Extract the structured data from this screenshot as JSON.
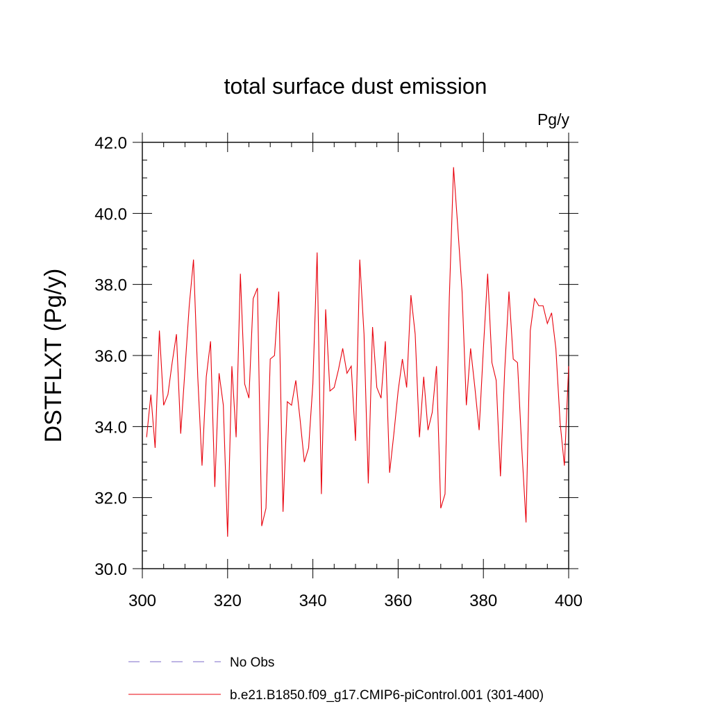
{
  "chart_data": {
    "type": "line",
    "title": "total surface dust emission",
    "units_label": "Pg/y",
    "xlabel": "",
    "ylabel": "DSTFLXT  (Pg/y)",
    "xlim": [
      300,
      400
    ],
    "ylim": [
      30.0,
      42.0
    ],
    "x_ticks": [
      300,
      320,
      340,
      360,
      380,
      400
    ],
    "y_ticks": [
      "30.0",
      "32.0",
      "34.0",
      "36.0",
      "38.0",
      "40.0",
      "42.0"
    ],
    "grid": false,
    "legend": {
      "placement": "bottom",
      "entries": [
        {
          "label": "No Obs",
          "color": "#7b68c8",
          "style": "dashed"
        },
        {
          "label": "b.e21.B1850.f09_g17.CMIP6-piControl.001 (301-400)",
          "color": "#e8000b",
          "style": "solid"
        }
      ]
    },
    "series": [
      {
        "name": "b.e21.B1850.f09_g17.CMIP6-piControl.001 (301-400)",
        "color": "#e8000b",
        "x_start": 301,
        "x_step": 1,
        "values": [
          33.7,
          34.9,
          33.4,
          36.7,
          34.6,
          34.9,
          35.8,
          36.6,
          33.8,
          35.6,
          37.4,
          38.7,
          35.4,
          32.9,
          35.4,
          36.4,
          32.3,
          35.5,
          34.6,
          30.9,
          35.7,
          33.7,
          38.3,
          35.2,
          34.8,
          37.6,
          37.9,
          31.2,
          31.7,
          35.9,
          36.0,
          37.8,
          31.6,
          34.7,
          34.6,
          35.3,
          34.2,
          33.0,
          33.4,
          35.2,
          38.9,
          32.1,
          37.3,
          35.0,
          35.1,
          35.6,
          36.2,
          35.5,
          35.7,
          33.6,
          38.7,
          36.6,
          32.4,
          36.8,
          35.1,
          34.8,
          36.4,
          32.7,
          33.8,
          35.0,
          35.9,
          35.1,
          37.7,
          36.6,
          33.7,
          35.4,
          33.9,
          34.4,
          35.7,
          31.7,
          32.1,
          37.6,
          41.3,
          39.6,
          37.8,
          34.6,
          36.2,
          35.1,
          33.9,
          36.2,
          38.3,
          35.8,
          35.3,
          32.6,
          35.6,
          37.8,
          35.9,
          35.8,
          33.4,
          31.3,
          36.7,
          37.6,
          37.4,
          37.4,
          36.9,
          37.2,
          36.2,
          34.1,
          32.9,
          35.7
        ]
      }
    ]
  }
}
